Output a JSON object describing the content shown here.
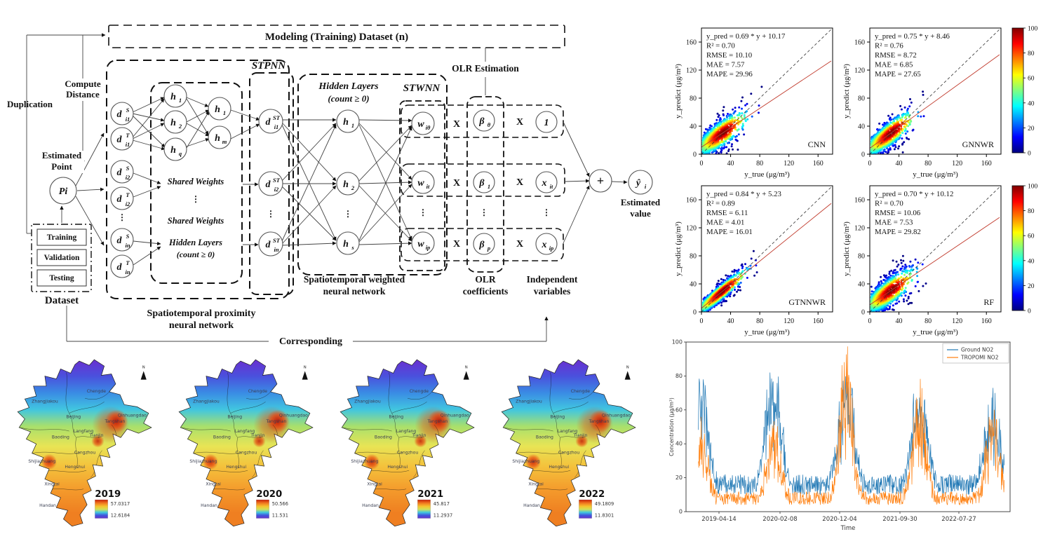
{
  "diagram": {
    "title": "Modeling (Training) Dataset (n)",
    "labels": {
      "duplication": "Duplication",
      "compute_l1": "Compute",
      "compute_l2": "Distance",
      "estpoint_l1": "Estimated",
      "estpoint_l2": "Point",
      "training": "Training",
      "validation": "Validation",
      "testing": "Testing",
      "dataset": "Dataset",
      "stpnn": "STPNN",
      "stwnn": "STWNN",
      "shared_weights": "Shared Weights",
      "hidden_layers": "Hidden Layers",
      "count_ge_0": "(count ≥ 0)",
      "olr_estimation": "OLR Estimation",
      "x_times": "X",
      "spnn_l1": "Spatiotemporal proximity",
      "spnn_l2": "neural network",
      "swnn_l1": "Spatiotemporal weighted",
      "swnn_l2": "neural network",
      "olr_l1": "OLR",
      "olr_l2": "coefficients",
      "indep_l1": "Independent",
      "indep_l2": "variables",
      "corresponding": "Corresponding",
      "estval_l1": "Estimated",
      "estval_l2": "value",
      "dots": "⋮"
    },
    "nodes": {
      "pi": {
        "main": "Pi"
      },
      "ds1": {
        "main": "d",
        "sup": "S",
        "sub": "i1"
      },
      "dt1": {
        "main": "d",
        "sup": "T",
        "sub": "i1"
      },
      "ds2": {
        "main": "d",
        "sup": "S",
        "sub": "i2"
      },
      "dt2": {
        "main": "d",
        "sup": "T",
        "sub": "i2"
      },
      "dsn": {
        "main": "d",
        "sup": "S",
        "sub": "in"
      },
      "dtn": {
        "main": "d",
        "sup": "T",
        "sub": "in"
      },
      "h1a": {
        "main": "h",
        "sub": "1"
      },
      "h2a": {
        "main": "h",
        "sub": "2"
      },
      "hqa": {
        "main": "h",
        "sub": "q"
      },
      "h1b": {
        "main": "h",
        "sub": "1"
      },
      "hmb": {
        "main": "h",
        "sub": "m"
      },
      "dst1": {
        "main": "d",
        "sup": "ST",
        "sub": "i1"
      },
      "dst2": {
        "main": "d",
        "sup": "ST",
        "sub": "i2"
      },
      "dstn": {
        "main": "d",
        "sup": "ST",
        "sub": "in"
      },
      "h1c": {
        "main": "h",
        "sub": "1"
      },
      "h2c": {
        "main": "h",
        "sub": "2"
      },
      "hsc": {
        "main": "h",
        "sub": "s"
      },
      "wt": {
        "main": "w",
        "sub": "iθ"
      },
      "wi": {
        "main": "w",
        "sub": "it"
      },
      "wp": {
        "main": "w",
        "sub": "ip"
      },
      "b0": {
        "main": "β",
        "sub": "θ"
      },
      "b1": {
        "main": "β",
        "sub": "1"
      },
      "bp": {
        "main": "β",
        "sub": "p"
      },
      "one": {
        "main": "1"
      },
      "xit": {
        "main": "x",
        "sub": "it"
      },
      "xip": {
        "main": "x",
        "sub": "ip"
      },
      "plus": {
        "main": "+"
      },
      "yhat": {
        "main": "ŷ",
        "sub": "i"
      }
    }
  },
  "chart_data": [
    {
      "id": "scatter_cnn",
      "type": "scatter",
      "model_label": "CNN",
      "stats_lines": [
        "y_pred = 0.69 * y + 10.17",
        "R² = 0.70",
        "RMSE = 10.10",
        "MAE = 7.57",
        "MAPE = 29.96"
      ],
      "fit_slope": 0.69,
      "fit_intercept": 10.17,
      "spread": 12,
      "xlabel": "y_true (μg/m³)",
      "ylabel": "y_predict (μg/m³)",
      "xlim": [
        0,
        180
      ],
      "ylim": [
        0,
        180
      ],
      "ticks": [
        0,
        40,
        80,
        120,
        160
      ]
    },
    {
      "id": "scatter_gnnwr",
      "type": "scatter",
      "model_label": "GNNWR",
      "stats_lines": [
        "y_pred = 0.75 * y + 8.46",
        "R² = 0.76",
        "RMSE = 8.72",
        "MAE = 6.85",
        "MAPE = 27.65"
      ],
      "fit_slope": 0.75,
      "fit_intercept": 8.46,
      "spread": 11,
      "xlabel": "y_true (μg/m³)",
      "ylabel": "y_predict (μg/m³)",
      "xlim": [
        0,
        180
      ],
      "ylim": [
        0,
        180
      ],
      "ticks": [
        0,
        40,
        80,
        120,
        160
      ]
    },
    {
      "id": "scatter_gtnnwr",
      "type": "scatter",
      "model_label": "GTNNWR",
      "stats_lines": [
        "y_pred = 0.84 * y + 5.23",
        "R² = 0.89",
        "RMSE = 6.11",
        "MAE = 4.01",
        "MAPE = 16.01"
      ],
      "fit_slope": 0.84,
      "fit_intercept": 5.23,
      "spread": 7,
      "xlabel": "y_true (μg/m³)",
      "ylabel": "y_predict (μg/m³)",
      "xlim": [
        0,
        180
      ],
      "ylim": [
        0,
        180
      ],
      "ticks": [
        0,
        40,
        80,
        120,
        160
      ]
    },
    {
      "id": "scatter_rf",
      "type": "scatter",
      "model_label": "RF",
      "stats_lines": [
        "y_pred = 0.70 * y + 10.12",
        "R² = 0.70",
        "RMSE = 10.06",
        "MAE = 7.53",
        "MAPE = 29.82"
      ],
      "fit_slope": 0.7,
      "fit_intercept": 10.12,
      "spread": 12,
      "xlabel": "y_true (μg/m³)",
      "ylabel": "y_predict (μg/m³)",
      "xlim": [
        0,
        180
      ],
      "ylim": [
        0,
        180
      ],
      "ticks": [
        0,
        40,
        80,
        120,
        160
      ]
    },
    {
      "id": "density_colorbar",
      "type": "colorbar",
      "range": [
        0,
        100
      ],
      "ticks": [
        0,
        20,
        40,
        60,
        80,
        100
      ]
    },
    {
      "id": "no2_timeseries",
      "type": "line",
      "xlabel": "Time",
      "ylabel": "Concentration (μg/m³)",
      "ylim": [
        0,
        100
      ],
      "yticks": [
        0,
        20,
        40,
        60,
        80,
        100
      ],
      "xticks": [
        "2019-04-14",
        "2020-02-08",
        "2020-12-04",
        "2021-09-30",
        "2022-07-27"
      ],
      "series": [
        {
          "name": "Ground NO2",
          "color": "#1f77b4"
        },
        {
          "name": "TROPOMI NO2",
          "color": "#ff7f0e"
        }
      ],
      "winter_peak_values": {
        "ground_no2": [
          85,
          84,
          83,
          72,
          63
        ],
        "tropomi_no2": [
          50,
          52,
          98,
          76,
          58
        ]
      }
    },
    {
      "id": "annual_no2_maps",
      "type": "choropleth",
      "colormap": "jet",
      "north_label": "N",
      "years": [
        {
          "year": "2019",
          "max": "57.0317",
          "min": "12.6184"
        },
        {
          "year": "2020",
          "max": "50.566",
          "min": "11.531"
        },
        {
          "year": "2021",
          "max": "45.817",
          "min": "11.2937"
        },
        {
          "year": "2022",
          "max": "49.1809",
          "min": "11.8301"
        }
      ],
      "cities": [
        "Zhangjiakou",
        "Chengde",
        "Beijing",
        "Qinhuangdao",
        "Tangshan",
        "Tianjin",
        "Langfang",
        "Baoding",
        "Cangzhou",
        "Shijiazhuang",
        "Hengshui",
        "Xingtai",
        "Handan"
      ]
    }
  ]
}
